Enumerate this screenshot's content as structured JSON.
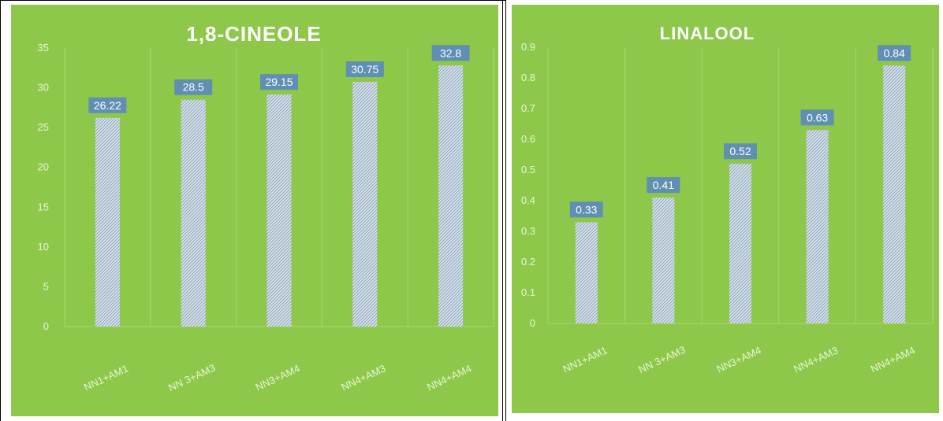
{
  "colors": {
    "panel_bg": "#8dc84a",
    "grid": "#a9d672",
    "bar_fill": "#d8e4ee",
    "bar_hatch": "#8ea3b4",
    "label_bg": "#5f8fb2",
    "text": "#ffffff"
  },
  "chart_data": [
    {
      "type": "bar",
      "title": "1,8-CINEOLE",
      "categories": [
        "NN1+AM1",
        "NN 3+AM3",
        "NN3+AM4",
        "NN4+AM3",
        "NN4+AM4"
      ],
      "values": [
        26.22,
        28.5,
        29.15,
        30.75,
        32.8
      ],
      "value_labels": [
        "26.22",
        "28.5",
        "29.15",
        "30.75",
        "32.8"
      ],
      "ylim": [
        0,
        35
      ],
      "yticks": [
        "0",
        "5",
        "10",
        "15",
        "20",
        "25",
        "30",
        "35"
      ],
      "ytick_values": [
        0,
        5,
        10,
        15,
        20,
        25,
        30,
        35
      ],
      "grid": true,
      "bar_pattern": "diagonal-hatch"
    },
    {
      "type": "bar",
      "title": "LINALOOL",
      "categories": [
        "NN1+AM1",
        "NN 3+AM3",
        "NN3+AM4",
        "NN4+AM3",
        "NN4+AM4"
      ],
      "values": [
        0.33,
        0.41,
        0.52,
        0.63,
        0.84
      ],
      "value_labels": [
        "0.33",
        "0.41",
        "0.52",
        "0.63",
        "0.84"
      ],
      "ylim": [
        0,
        0.9
      ],
      "yticks": [
        "0",
        "0.1",
        "0.2",
        "0.3",
        "0.4",
        "0.5",
        "0.6",
        "0.7",
        "0.8",
        "0.9"
      ],
      "ytick_values": [
        0,
        0.1,
        0.2,
        0.3,
        0.4,
        0.5,
        0.6,
        0.7,
        0.8,
        0.9
      ],
      "grid": true,
      "bar_pattern": "diagonal-hatch"
    }
  ]
}
